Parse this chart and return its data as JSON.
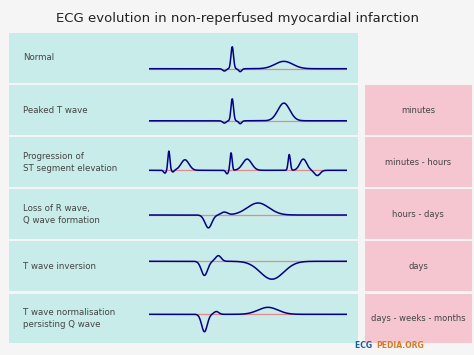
{
  "title": "ECG evolution in non-reperfused myocardial infarction",
  "title_fontsize": 9.5,
  "bg_color": "#f5f5f5",
  "row_bg_color": "#c8ece9",
  "time_bg_color": "#f5c6d0",
  "label_color": "#444444",
  "ecg_color": "#00008B",
  "baseline_color": "#e88080",
  "rows": [
    {
      "label": "Normal",
      "time": null
    },
    {
      "label": "Peaked T wave",
      "time": "minutes"
    },
    {
      "label": "Progression of\nST segment elevation",
      "time": "minutes - hours"
    },
    {
      "label": "Loss of R wave,\nQ wave formation",
      "time": "hours - days"
    },
    {
      "label": "T wave inversion",
      "time": "days"
    },
    {
      "label": "T wave normalisation\npersisting Q wave",
      "time": "days - weeks - months"
    }
  ]
}
